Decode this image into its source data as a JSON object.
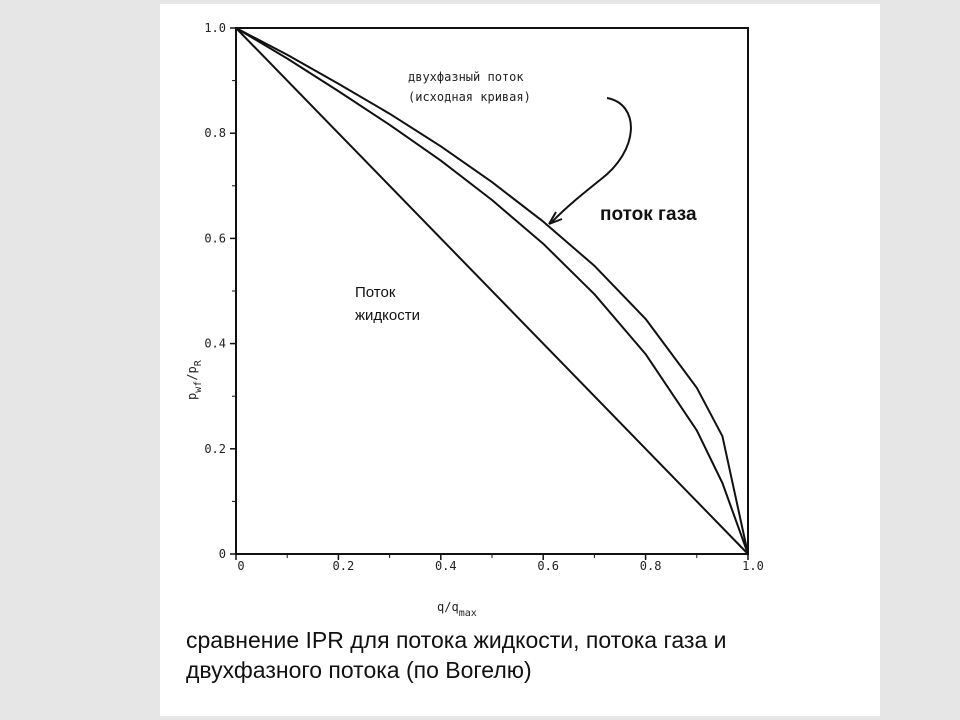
{
  "caption": {
    "line1": "сравнение IPR для потока жидкости, потока газа и",
    "line2": "двухфазного потока (по Вогелю)"
  },
  "chart_data": {
    "type": "line",
    "xlabel": "q/q",
    "xlabel_sub": "max",
    "ylabel": "p",
    "ylabel_sub": "wf",
    "ylabel_rest": "/p",
    "ylabel_sub2": "R",
    "xlim": [
      0,
      1.0
    ],
    "ylim": [
      0,
      1.0
    ],
    "x_ticks": [
      "0",
      "0.2",
      "0.4",
      "0.6",
      "0.8",
      "1.0"
    ],
    "y_ticks": [
      "0",
      "0.2",
      "0.4",
      "0.6",
      "0.8",
      "1.0"
    ],
    "x_tick_values": [
      0,
      0.2,
      0.4,
      0.6,
      0.8,
      1.0
    ],
    "y_tick_values": [
      0,
      0.2,
      0.4,
      0.6,
      0.8,
      1.0
    ],
    "grid": false,
    "series": [
      {
        "name": "Поток жидкости",
        "x": [
          0,
          1.0
        ],
        "y": [
          1.0,
          0
        ]
      },
      {
        "name": "двухфазный поток (исходная кривая)",
        "x": [
          0,
          0.1,
          0.2,
          0.3,
          0.4,
          0.5,
          0.6,
          0.7,
          0.8,
          0.9,
          0.95,
          1.0
        ],
        "y": [
          1.0,
          0.942,
          0.88,
          0.816,
          0.748,
          0.673,
          0.59,
          0.494,
          0.38,
          0.235,
          0.135,
          0.0
        ]
      },
      {
        "name": "поток газа",
        "x": [
          0,
          0.1,
          0.2,
          0.3,
          0.4,
          0.5,
          0.6,
          0.7,
          0.8,
          0.9,
          0.95,
          1.0
        ],
        "y": [
          1.0,
          0.949,
          0.894,
          0.837,
          0.775,
          0.707,
          0.632,
          0.548,
          0.447,
          0.316,
          0.224,
          0.0
        ]
      }
    ],
    "annotations": {
      "two_phase_line1": "двухфазный поток",
      "two_phase_line2": "(исходная кривая)",
      "gas": "поток газа",
      "liquid_line1": "Поток",
      "liquid_line2": "жидкости"
    }
  }
}
